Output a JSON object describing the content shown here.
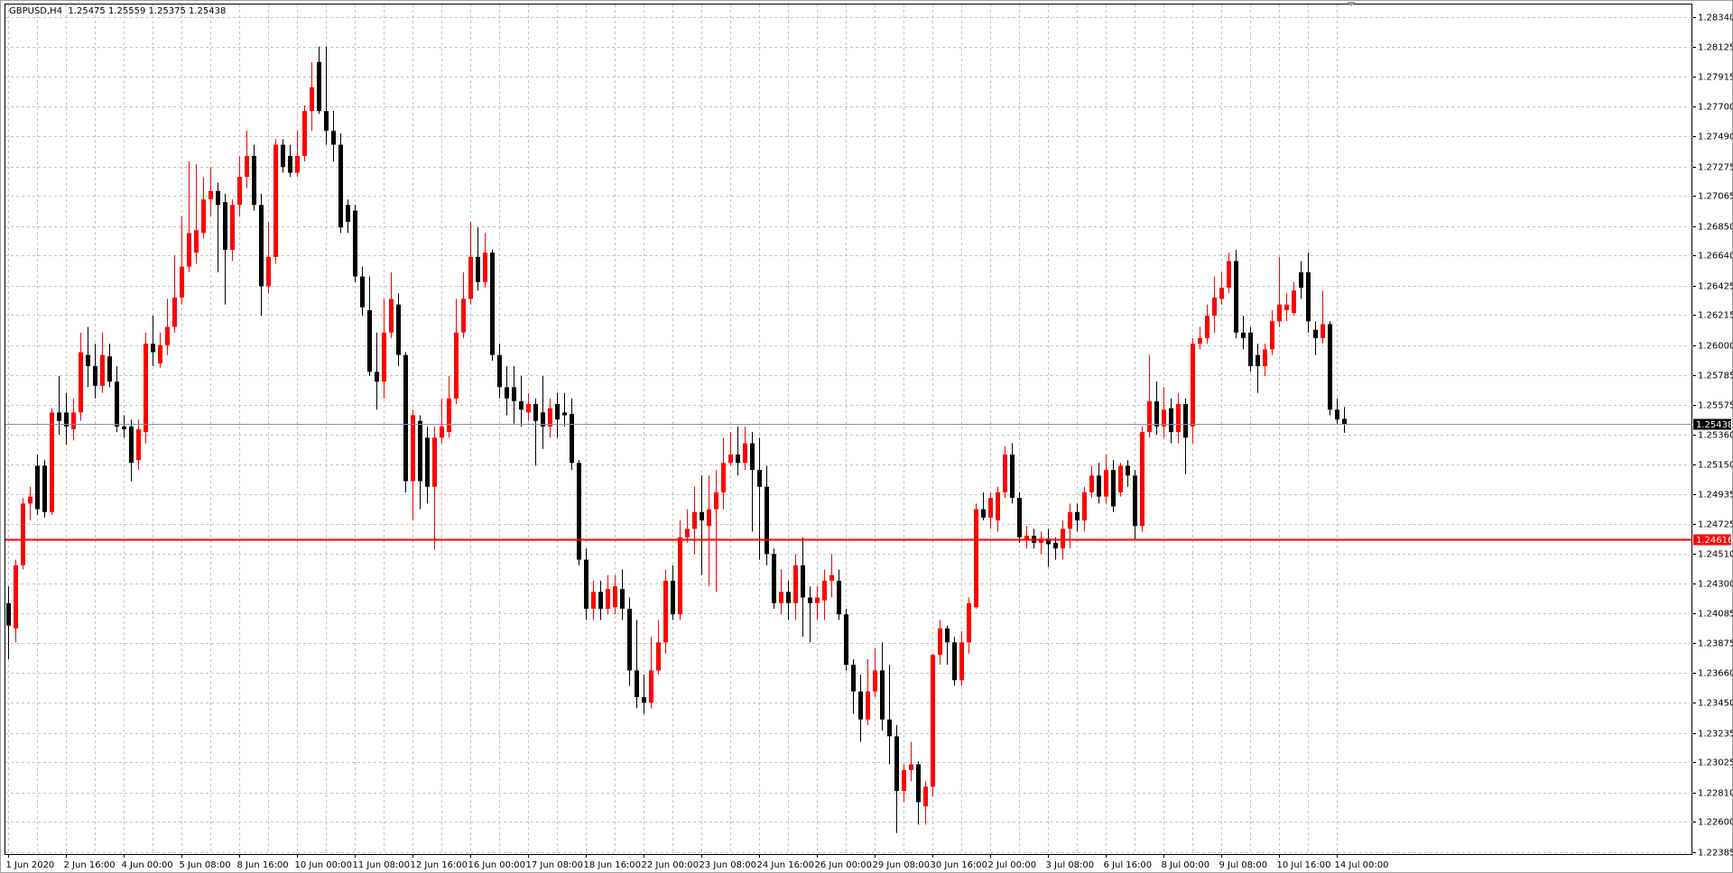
{
  "chart_data": {
    "type": "candlestick",
    "title": "GBPUSD,H4  1.25475 1.25559 1.25375 1.25438",
    "categories": [
      "1 Jun 2020",
      null,
      null,
      null,
      null,
      null,
      null,
      null,
      "2 Jun 16:00",
      null,
      null,
      null,
      null,
      null,
      null,
      null,
      "4 Jun 00:00",
      null,
      null,
      null,
      null,
      null,
      null,
      null,
      "5 Jun 08:00",
      null,
      null,
      null,
      null,
      null,
      null,
      null,
      "8 Jun 16:00",
      null,
      null,
      null,
      null,
      null,
      null,
      null,
      "10 Jun 00:00",
      null,
      null,
      null,
      null,
      null,
      null,
      null,
      "11 Jun 08:00",
      null,
      null,
      null,
      null,
      null,
      null,
      null,
      "12 Jun 16:00",
      null,
      null,
      null,
      null,
      null,
      null,
      null,
      "16 Jun 00:00",
      null,
      null,
      null,
      null,
      null,
      null,
      null,
      "17 Jun 08:00",
      null,
      null,
      null,
      null,
      null,
      null,
      null,
      "18 Jun 16:00",
      null,
      null,
      null,
      null,
      null,
      null,
      null,
      "22 Jun 00:00",
      null,
      null,
      null,
      null,
      null,
      null,
      null,
      "23 Jun 08:00",
      null,
      null,
      null,
      null,
      null,
      null,
      null,
      "24 Jun 16:00",
      null,
      null,
      null,
      null,
      null,
      null,
      null,
      "26 Jun 00:00",
      null,
      null,
      null,
      null,
      null,
      null,
      null,
      "29 Jun 08:00",
      null,
      null,
      null,
      null,
      null,
      null,
      null,
      "30 Jun 16:00",
      null,
      null,
      null,
      null,
      null,
      null,
      null,
      "2 Jul 00:00",
      null,
      null,
      null,
      null,
      null,
      null,
      null,
      "3 Jul 08:00",
      null,
      null,
      null,
      null,
      null,
      null,
      null,
      "6 Jul 16:00",
      null,
      null,
      null,
      null,
      null,
      null,
      null,
      "8 Jul 00:00",
      null,
      null,
      null,
      null,
      null,
      null,
      null,
      "9 Jul 08:00",
      null,
      null,
      null,
      null,
      null,
      null,
      null,
      "10 Jul 16:00",
      null,
      null,
      null,
      null,
      null,
      null,
      null,
      "14 Jul 00:00",
      null
    ],
    "ohlc": [
      [
        1.2416,
        1.2428,
        1.2376,
        1.24
      ],
      [
        1.2398,
        1.2447,
        1.2388,
        1.2443
      ],
      [
        1.2443,
        1.2491,
        1.244,
        1.2487
      ],
      [
        1.2487,
        1.2499,
        1.2475,
        1.2492
      ],
      [
        1.2514,
        1.2522,
        1.2479,
        1.2483
      ],
      [
        1.2514,
        1.2518,
        1.2477,
        1.2481
      ],
      [
        1.2481,
        1.2555,
        1.2479,
        1.2552
      ],
      [
        1.2552,
        1.2578,
        1.2536,
        1.2546
      ],
      [
        1.2552,
        1.2566,
        1.2529,
        1.2542
      ],
      [
        1.254,
        1.2562,
        1.2532,
        1.2552
      ],
      [
        1.2552,
        1.2609,
        1.2546,
        1.2595
      ],
      [
        1.2593,
        1.2613,
        1.257,
        1.2585
      ],
      [
        1.2585,
        1.2601,
        1.2562,
        1.2571
      ],
      [
        1.2571,
        1.2609,
        1.2566,
        1.2593
      ],
      [
        1.2592,
        1.2601,
        1.257,
        1.2574
      ],
      [
        1.2574,
        1.2585,
        1.2538,
        1.2542
      ],
      [
        1.2542,
        1.255,
        1.2534,
        1.254
      ],
      [
        1.2542,
        1.2547,
        1.2503,
        1.2516
      ],
      [
        1.2518,
        1.2547,
        1.2511,
        1.254
      ],
      [
        1.2538,
        1.2609,
        1.253,
        1.2601
      ],
      [
        1.2601,
        1.2621,
        1.2585,
        1.2595
      ],
      [
        1.2587,
        1.2609,
        1.2584,
        1.26
      ],
      [
        1.26,
        1.2633,
        1.2593,
        1.2613
      ],
      [
        1.2613,
        1.2664,
        1.2609,
        1.2634
      ],
      [
        1.2634,
        1.2692,
        1.2629,
        1.2656
      ],
      [
        1.2656,
        1.2731,
        1.2652,
        1.268
      ],
      [
        1.2666,
        1.2729,
        1.2658,
        1.2682
      ],
      [
        1.268,
        1.272,
        1.2676,
        1.2704
      ],
      [
        1.2704,
        1.2727,
        1.2692,
        1.271
      ],
      [
        1.271,
        1.2716,
        1.2652,
        1.27
      ],
      [
        1.2702,
        1.2708,
        1.2629,
        1.2668
      ],
      [
        1.2668,
        1.2704,
        1.266,
        1.27
      ],
      [
        1.27,
        1.2735,
        1.2692,
        1.272
      ],
      [
        1.272,
        1.2753,
        1.2712,
        1.2735
      ],
      [
        1.2735,
        1.2743,
        1.2696,
        1.27
      ],
      [
        1.27,
        1.2708,
        1.2621,
        1.2642
      ],
      [
        1.2642,
        1.2688,
        1.2637,
        1.2663
      ],
      [
        1.2663,
        1.2747,
        1.2658,
        1.2743
      ],
      [
        1.2743,
        1.2747,
        1.2723,
        1.2727
      ],
      [
        1.2735,
        1.2743,
        1.272,
        1.2723
      ],
      [
        1.2723,
        1.2753,
        1.272,
        1.2735
      ],
      [
        1.2735,
        1.2771,
        1.2731,
        1.2767
      ],
      [
        1.2767,
        1.2802,
        1.2753,
        1.2784
      ],
      [
        1.2802,
        1.2813,
        1.2765,
        1.2767
      ],
      [
        1.2767,
        1.2813,
        1.2743,
        1.2753
      ],
      [
        1.2753,
        1.2767,
        1.2731,
        1.2743
      ],
      [
        1.2743,
        1.2751,
        1.268,
        1.2684
      ],
      [
        1.27,
        1.2704,
        1.268,
        1.2688
      ],
      [
        1.2696,
        1.27,
        1.2645,
        1.2649
      ],
      [
        1.2649,
        1.2656,
        1.2621,
        1.2627
      ],
      [
        1.2625,
        1.2649,
        1.2578,
        1.2581
      ],
      [
        1.2581,
        1.2609,
        1.2554,
        1.2574
      ],
      [
        1.2574,
        1.2633,
        1.2562,
        1.2609
      ],
      [
        1.2609,
        1.2652,
        1.2605,
        1.2633
      ],
      [
        1.2629,
        1.2637,
        1.2585,
        1.2593
      ],
      [
        1.2593,
        1.2595,
        1.2495,
        1.2503
      ],
      [
        1.2503,
        1.2554,
        1.2475,
        1.255
      ],
      [
        1.2546,
        1.255,
        1.2483,
        1.2503
      ],
      [
        1.2534,
        1.2542,
        1.2487,
        1.2499
      ],
      [
        1.2499,
        1.2542,
        1.2454,
        1.2534
      ],
      [
        1.2534,
        1.2562,
        1.253,
        1.2542
      ],
      [
        1.2538,
        1.2578,
        1.2534,
        1.2562
      ],
      [
        1.2562,
        1.2633,
        1.2558,
        1.2609
      ],
      [
        1.2609,
        1.2652,
        1.2605,
        1.2633
      ],
      [
        1.2633,
        1.2688,
        1.2629,
        1.2663
      ],
      [
        1.2663,
        1.2684,
        1.2639,
        1.2645
      ],
      [
        1.2645,
        1.268,
        1.2641,
        1.2666
      ],
      [
        1.2666,
        1.2668,
        1.2589,
        1.2593
      ],
      [
        1.2593,
        1.2601,
        1.2562,
        1.257
      ],
      [
        1.257,
        1.2585,
        1.255,
        1.2562
      ],
      [
        1.257,
        1.2585,
        1.2544,
        1.256
      ],
      [
        1.256,
        1.2578,
        1.2542,
        1.2554
      ],
      [
        1.2552,
        1.2566,
        1.2546,
        1.2558
      ],
      [
        1.2558,
        1.2562,
        1.2514,
        1.2546
      ],
      [
        1.2552,
        1.2578,
        1.2526,
        1.2542
      ],
      [
        1.2542,
        1.2562,
        1.2534,
        1.2555
      ],
      [
        1.2558,
        1.2566,
        1.2534,
        1.2547
      ],
      [
        1.2552,
        1.2566,
        1.2542,
        1.255
      ],
      [
        1.2551,
        1.2562,
        1.2511,
        1.2516
      ],
      [
        1.2516,
        1.2518,
        1.2443,
        1.2447
      ],
      [
        1.2447,
        1.2455,
        1.2404,
        1.2412
      ],
      [
        1.2412,
        1.2432,
        1.2404,
        1.2424
      ],
      [
        1.2424,
        1.2432,
        1.2404,
        1.2412
      ],
      [
        1.2412,
        1.2436,
        1.2408,
        1.2426
      ],
      [
        1.2413,
        1.2436,
        1.2408,
        1.2428
      ],
      [
        1.2426,
        1.244,
        1.2404,
        1.2412
      ],
      [
        1.2412,
        1.242,
        1.2357,
        1.2368
      ],
      [
        1.2368,
        1.2404,
        1.2341,
        1.2349
      ],
      [
        1.2349,
        1.2365,
        1.2337,
        1.2345
      ],
      [
        1.2345,
        1.2392,
        1.2341,
        1.2368
      ],
      [
        1.2368,
        1.2404,
        1.2365,
        1.2388
      ],
      [
        1.2388,
        1.244,
        1.238,
        1.2432
      ],
      [
        1.2432,
        1.2443,
        1.2404,
        1.2408
      ],
      [
        1.2408,
        1.2475,
        1.2404,
        1.2463
      ],
      [
        1.2463,
        1.2483,
        1.2459,
        1.2469
      ],
      [
        1.2469,
        1.2499,
        1.2451,
        1.2481
      ],
      [
        1.2481,
        1.2507,
        1.2436,
        1.2475
      ],
      [
        1.2471,
        1.2507,
        1.2428,
        1.2483
      ],
      [
        1.2483,
        1.2511,
        1.2424,
        1.2495
      ],
      [
        1.2495,
        1.2534,
        1.2483,
        1.2516
      ],
      [
        1.2516,
        1.2538,
        1.2514,
        1.2522
      ],
      [
        1.2522,
        1.2542,
        1.2507,
        1.2516
      ],
      [
        1.2516,
        1.2542,
        1.2511,
        1.253
      ],
      [
        1.253,
        1.2538,
        1.2467,
        1.2511
      ],
      [
        1.2511,
        1.2534,
        1.2447,
        1.2499
      ],
      [
        1.2499,
        1.2514,
        1.2443,
        1.2451
      ],
      [
        1.2451,
        1.2455,
        1.2412,
        1.2416
      ],
      [
        1.2416,
        1.244,
        1.2408,
        1.2424
      ],
      [
        1.2424,
        1.2432,
        1.2404,
        1.2416
      ],
      [
        1.2416,
        1.2451,
        1.2404,
        1.2443
      ],
      [
        1.2443,
        1.2463,
        1.2392,
        1.242
      ],
      [
        1.242,
        1.2428,
        1.2388,
        1.2416
      ],
      [
        1.2416,
        1.2428,
        1.2404,
        1.242
      ],
      [
        1.2418,
        1.244,
        1.2404,
        1.2432
      ],
      [
        1.2432,
        1.2451,
        1.242,
        1.2436
      ],
      [
        1.2432,
        1.244,
        1.2404,
        1.2408
      ],
      [
        1.2408,
        1.2412,
        1.2368,
        1.2372
      ],
      [
        1.2372,
        1.2376,
        1.2337,
        1.2353
      ],
      [
        1.2353,
        1.2365,
        1.2317,
        1.2333
      ],
      [
        1.2333,
        1.2376,
        1.2329,
        1.2353
      ],
      [
        1.2353,
        1.2384,
        1.2349,
        1.2368
      ],
      [
        1.2368,
        1.2388,
        1.2325,
        1.2333
      ],
      [
        1.2333,
        1.2372,
        1.2301,
        1.2321
      ],
      [
        1.2321,
        1.2329,
        1.2252,
        1.2282
      ],
      [
        1.2282,
        1.2301,
        1.2274,
        1.2297
      ],
      [
        1.2297,
        1.2317,
        1.2289,
        1.2301
      ],
      [
        1.2301,
        1.2303,
        1.2258,
        1.2274
      ],
      [
        1.2271,
        1.2289,
        1.2258,
        1.2285
      ],
      [
        1.2285,
        1.238,
        1.2278,
        1.2379
      ],
      [
        1.2379,
        1.2404,
        1.2372,
        1.2398
      ],
      [
        1.2398,
        1.24,
        1.2372,
        1.2388
      ],
      [
        1.2388,
        1.2392,
        1.2357,
        1.2361
      ],
      [
        1.2361,
        1.2396,
        1.2357,
        1.2388
      ],
      [
        1.2388,
        1.242,
        1.238,
        1.2416
      ],
      [
        1.2413,
        1.2487,
        1.2412,
        1.2483
      ],
      [
        1.2483,
        1.2495,
        1.2475,
        1.2477
      ],
      [
        1.2477,
        1.2495,
        1.2469,
        1.2491
      ],
      [
        1.2475,
        1.2499,
        1.2467,
        1.2495
      ],
      [
        1.2495,
        1.2528,
        1.2491,
        1.2522
      ],
      [
        1.2522,
        1.253,
        1.2487,
        1.2491
      ],
      [
        1.2491,
        1.2495,
        1.2459,
        1.2463
      ],
      [
        1.2461,
        1.2471,
        1.2455,
        1.2464
      ],
      [
        1.2464,
        1.2469,
        1.2455,
        1.2459
      ],
      [
        1.2459,
        1.2467,
        1.2451,
        1.2462
      ],
      [
        1.2462,
        1.2469,
        1.2442,
        1.2458
      ],
      [
        1.2459,
        1.2463,
        1.2447,
        1.2455
      ],
      [
        1.2455,
        1.2475,
        1.2447,
        1.2469
      ],
      [
        1.2469,
        1.2487,
        1.2455,
        1.2481
      ],
      [
        1.2481,
        1.2487,
        1.2467,
        1.2475
      ],
      [
        1.2475,
        1.2499,
        1.2467,
        1.2495
      ],
      [
        1.2495,
        1.2514,
        1.2491,
        1.2507
      ],
      [
        1.2507,
        1.2516,
        1.2487,
        1.2492
      ],
      [
        1.2492,
        1.2522,
        1.2487,
        1.2511
      ],
      [
        1.2511,
        1.2518,
        1.2481,
        1.2485
      ],
      [
        1.2495,
        1.2516,
        1.2492,
        1.2514
      ],
      [
        1.2514,
        1.2518,
        1.2499,
        1.2507
      ],
      [
        1.2507,
        1.2511,
        1.2461,
        1.2471
      ],
      [
        1.2471,
        1.2542,
        1.2467,
        1.2538
      ],
      [
        1.2538,
        1.2593,
        1.2534,
        1.256
      ],
      [
        1.256,
        1.2574,
        1.2536,
        1.2542
      ],
      [
        1.2542,
        1.257,
        1.2534,
        1.2554
      ],
      [
        1.2555,
        1.2562,
        1.253,
        1.2538
      ],
      [
        1.2538,
        1.2566,
        1.253,
        1.2558
      ],
      [
        1.2558,
        1.2562,
        1.2508,
        1.2534
      ],
      [
        1.2542,
        1.2605,
        1.253,
        1.2601
      ],
      [
        1.2601,
        1.2613,
        1.2597,
        1.2605
      ],
      [
        1.2605,
        1.2629,
        1.2601,
        1.2621
      ],
      [
        1.2621,
        1.2649,
        1.2609,
        1.2634
      ],
      [
        1.2633,
        1.2652,
        1.2629,
        1.2641
      ],
      [
        1.2641,
        1.2666,
        1.2637,
        1.266
      ],
      [
        1.266,
        1.2668,
        1.2605,
        1.2609
      ],
      [
        1.2609,
        1.2621,
        1.2597,
        1.2605
      ],
      [
        1.2609,
        1.2613,
        1.2581,
        1.2585
      ],
      [
        1.2593,
        1.2601,
        1.2566,
        1.2585
      ],
      [
        1.2585,
        1.2601,
        1.2578,
        1.2597
      ],
      [
        1.2597,
        1.2625,
        1.2593,
        1.2617
      ],
      [
        1.2617,
        1.2663,
        1.2613,
        1.2629
      ],
      [
        1.2625,
        1.2637,
        1.2617,
        1.2629
      ],
      [
        1.2623,
        1.2645,
        1.2621,
        1.2639
      ],
      [
        1.2652,
        1.266,
        1.2633,
        1.2641
      ],
      [
        1.2652,
        1.2666,
        1.2609,
        1.2617
      ],
      [
        1.2611,
        1.2617,
        1.2593,
        1.2605
      ],
      [
        1.2605,
        1.2639,
        1.2601,
        1.2615
      ],
      [
        1.2615,
        1.2617,
        1.255,
        1.2554
      ],
      [
        1.2554,
        1.2562,
        1.2544,
        1.2547
      ],
      [
        1.25475,
        1.25559,
        1.25375,
        1.25438
      ]
    ],
    "up_color": "#ff0000",
    "down_color": "#000000",
    "ylim": [
      1.2237,
      1.2843
    ],
    "yticks": [
      {
        "value": 1.2834,
        "label": "1.28340"
      },
      1.28125,
      1.27915,
      {
        "value": 1.277,
        "label": "1.27700"
      },
      {
        "value": 1.2749,
        "label": "1.27490"
      },
      1.27275,
      1.27065,
      {
        "value": 1.2685,
        "label": "1.26850"
      },
      {
        "value": 1.2664,
        "label": "1.26640"
      },
      1.26425,
      1.26215,
      {
        "value": 1.26,
        "label": "1.26000"
      },
      1.25785,
      1.25575,
      {
        "value": 1.2536,
        "label": "1.25360"
      },
      {
        "value": 1.2515,
        "label": "1.25150"
      },
      1.24935,
      1.24725,
      {
        "value": 1.2451,
        "label": "1.24510"
      },
      {
        "value": 1.243,
        "label": "1.24300"
      },
      1.24085,
      1.23875,
      {
        "value": 1.2366,
        "label": "1.23660"
      },
      {
        "value": 1.2345,
        "label": "1.23450"
      },
      1.23235,
      1.23025,
      {
        "value": 1.2281,
        "label": "1.22810"
      },
      {
        "value": 1.226,
        "label": "1.22600"
      },
      1.22385
    ],
    "grid": true,
    "price_line": 1.25438,
    "price_line_color": "#8494a8",
    "level": 1.24616,
    "level_color": "#ff0000"
  }
}
